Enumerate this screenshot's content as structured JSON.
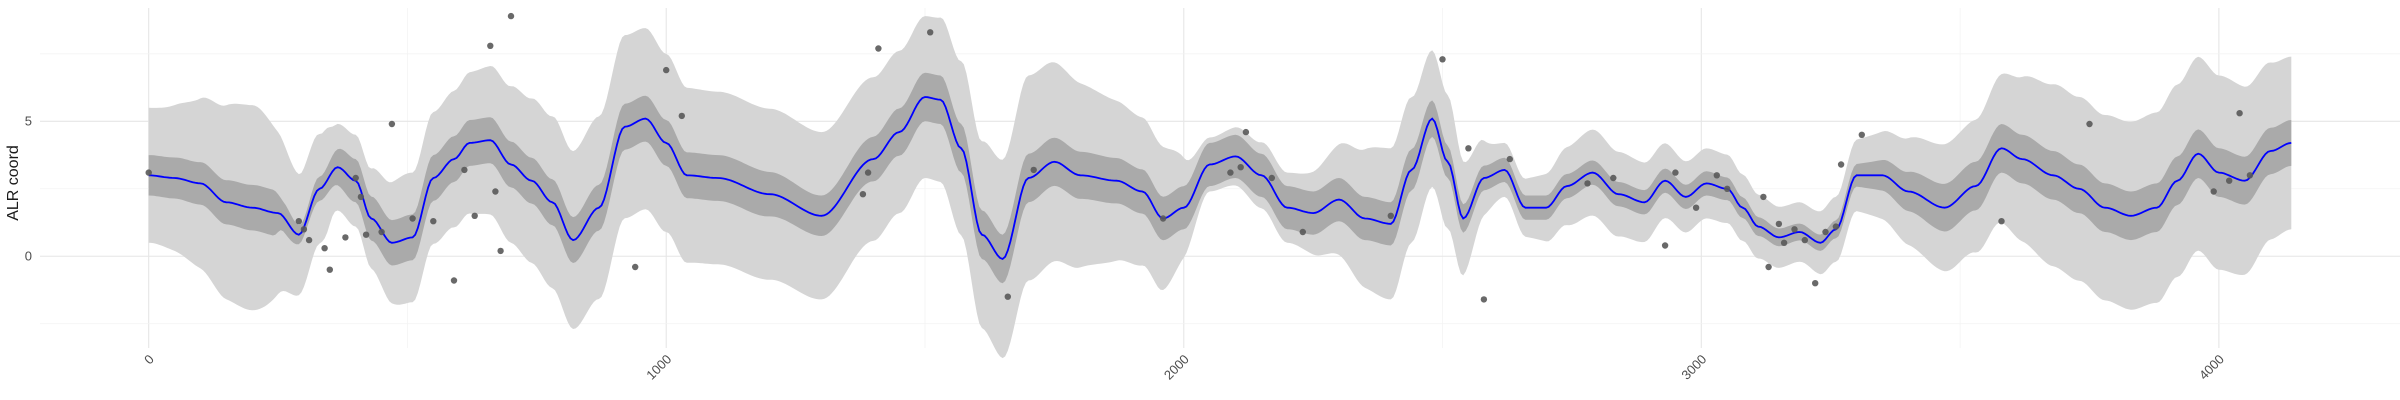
{
  "chart_data": {
    "type": "line",
    "title": "",
    "xlabel": "",
    "ylabel": "ALR coord",
    "xlim": [
      -210,
      4350
    ],
    "ylim": [
      -3.4,
      9.2
    ],
    "x_ticks": [
      0,
      1000,
      2000,
      3000,
      4000
    ],
    "x_tick_labels": [
      "0",
      "1000",
      "2000",
      "3000",
      "4000"
    ],
    "x_tick_label_angle": -45,
    "y_ticks": [
      0,
      5
    ],
    "y_tick_labels": [
      "0",
      "5"
    ],
    "grid": true,
    "legend": "none",
    "colors": {
      "mean_line": "#0000ff",
      "inner_band": "#aaaaaa",
      "outer_band": "#d5d5d5",
      "points": "#595959",
      "grid": "#ebebeb"
    },
    "mean_curve": {
      "x": [
        0,
        50,
        100,
        150,
        200,
        250,
        290,
        330,
        365,
        400,
        430,
        470,
        510,
        550,
        590,
        620,
        660,
        700,
        740,
        780,
        820,
        870,
        920,
        960,
        1000,
        1040,
        1100,
        1200,
        1300,
        1400,
        1450,
        1500,
        1530,
        1570,
        1610,
        1650,
        1700,
        1750,
        1800,
        1870,
        1920,
        1960,
        2000,
        2050,
        2100,
        2150,
        2200,
        2250,
        2300,
        2350,
        2400,
        2440,
        2480,
        2510,
        2540,
        2580,
        2620,
        2660,
        2700,
        2740,
        2790,
        2840,
        2890,
        2930,
        2970,
        3010,
        3050,
        3080,
        3110,
        3150,
        3190,
        3230,
        3260,
        3300,
        3350,
        3400,
        3470,
        3530,
        3580,
        3620,
        3680,
        3730,
        3780,
        3830,
        3880,
        3920,
        3960,
        4000,
        4050,
        4100,
        4140
      ],
      "y": [
        3.0,
        2.9,
        2.7,
        2.0,
        1.8,
        1.6,
        0.8,
        2.5,
        3.3,
        2.8,
        1.4,
        0.5,
        0.7,
        2.9,
        3.6,
        4.2,
        4.3,
        3.4,
        2.8,
        2.0,
        0.6,
        1.8,
        4.8,
        5.1,
        4.2,
        3.0,
        2.9,
        2.3,
        1.5,
        3.6,
        4.6,
        5.9,
        5.8,
        4.0,
        0.8,
        -0.1,
        2.9,
        3.5,
        3.0,
        2.8,
        2.4,
        1.4,
        1.8,
        3.4,
        3.7,
        3.0,
        1.8,
        1.6,
        2.1,
        1.4,
        1.2,
        3.2,
        5.1,
        3.5,
        1.4,
        2.9,
        3.2,
        1.8,
        1.8,
        2.6,
        3.1,
        2.3,
        2.0,
        2.8,
        2.2,
        2.7,
        2.5,
        1.8,
        1.1,
        0.7,
        0.9,
        0.5,
        1.0,
        3.0,
        3.0,
        2.4,
        1.8,
        2.6,
        4.0,
        3.6,
        3.0,
        2.5,
        1.8,
        1.5,
        1.8,
        2.8,
        3.8,
        3.1,
        2.8,
        3.9,
        4.2
      ]
    },
    "inner_band_halfwidth": {
      "x": [
        0,
        240,
        260,
        300,
        330,
        390,
        500,
        1150,
        1300,
        1500,
        1700,
        2000,
        2400,
        2600,
        3000,
        3150,
        3220,
        3500,
        4000,
        4140
      ],
      "y": [
        0.75,
        0.85,
        0.55,
        0.32,
        0.45,
        0.8,
        0.85,
        0.85,
        0.75,
        0.9,
        0.9,
        0.8,
        0.8,
        0.45,
        0.45,
        0.33,
        0.3,
        0.9,
        0.9,
        0.85
      ]
    },
    "outer_band_halfwidth": {
      "x": [
        0,
        200,
        300,
        340,
        360,
        400,
        500,
        900,
        1100,
        1500,
        1700,
        1950,
        2050,
        2200,
        2400,
        2500,
        2620,
        2800,
        3000,
        3200,
        3250,
        3500,
        3700,
        4000,
        4140
      ],
      "y": [
        2.5,
        3.8,
        2.2,
        2.0,
        1.6,
        1.7,
        2.4,
        3.4,
        3.2,
        3.0,
        3.8,
        2.7,
        1.0,
        1.3,
        2.8,
        2.5,
        1.0,
        1.6,
        1.3,
        1.1,
        1.2,
        2.4,
        3.4,
        3.6,
        3.2
      ]
    },
    "observed_points": {
      "x": [
        0,
        290,
        300,
        310,
        340,
        350,
        380,
        400,
        410,
        420,
        450,
        470,
        510,
        550,
        590,
        610,
        630,
        660,
        670,
        680,
        700,
        940,
        1000,
        1030,
        1380,
        1390,
        1410,
        1510,
        1660,
        1710,
        1960,
        2090,
        2110,
        2120,
        2170,
        2230,
        2400,
        2500,
        2550,
        2580,
        2630,
        2780,
        2830,
        2930,
        2950,
        2990,
        3030,
        3050,
        3120,
        3130,
        3150,
        3160,
        3180,
        3200,
        3220,
        3240,
        3260,
        3270,
        3310,
        3580,
        3750,
        3990,
        4020,
        4040,
        4060
      ],
      "y": [
        3.1,
        1.3,
        1.0,
        0.6,
        0.3,
        -0.5,
        0.7,
        2.9,
        2.2,
        0.8,
        0.9,
        4.9,
        1.4,
        1.3,
        -0.9,
        3.2,
        1.5,
        7.8,
        2.4,
        0.2,
        8.9,
        -0.4,
        6.9,
        5.2,
        2.3,
        3.1,
        7.7,
        8.3,
        -1.5,
        3.2,
        1.4,
        3.1,
        3.3,
        4.6,
        2.9,
        0.9,
        1.5,
        7.3,
        4.0,
        -1.6,
        3.6,
        2.7,
        2.9,
        0.4,
        3.1,
        1.8,
        3.0,
        2.5,
        2.2,
        -0.4,
        1.2,
        0.5,
        1.0,
        0.6,
        -1.0,
        0.9,
        1.1,
        3.4,
        4.5,
        1.3,
        4.9,
        2.4,
        2.8,
        5.3,
        3.0
      ]
    }
  }
}
